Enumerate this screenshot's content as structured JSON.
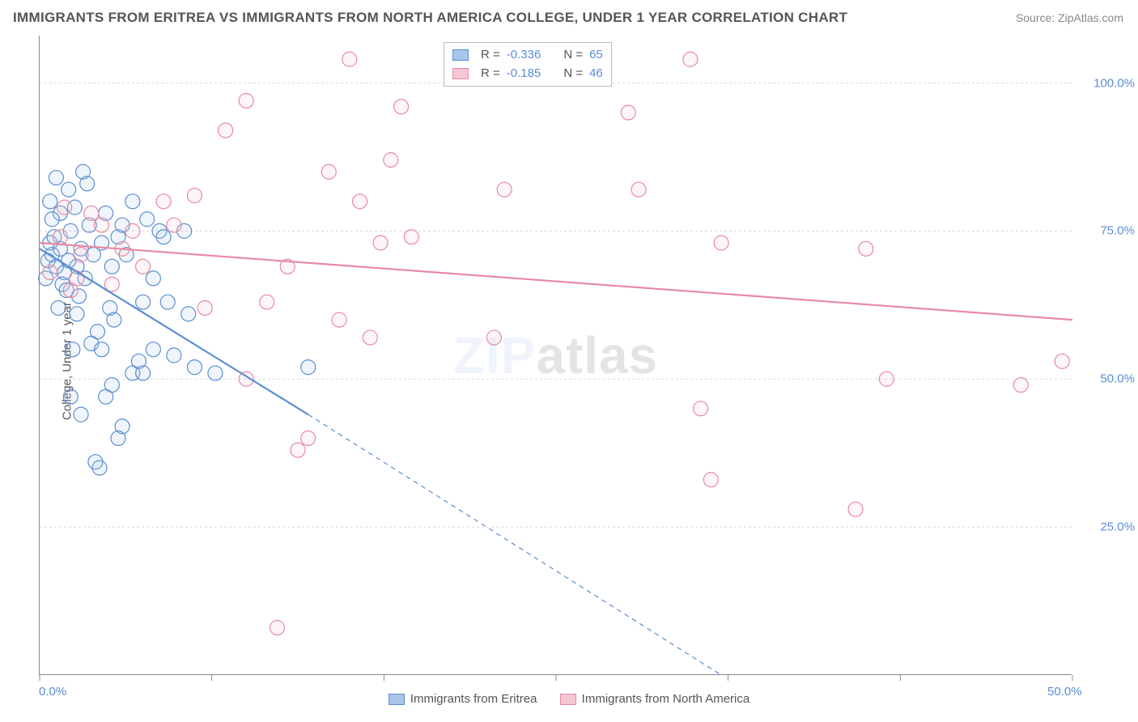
{
  "title": "IMMIGRANTS FROM ERITREA VS IMMIGRANTS FROM NORTH AMERICA COLLEGE, UNDER 1 YEAR CORRELATION CHART",
  "source": "Source: ZipAtlas.com",
  "y_axis_label": "College, Under 1 year",
  "watermark": {
    "zip": "ZIP",
    "atlas": "atlas"
  },
  "chart": {
    "type": "scatter",
    "background_color": "#ffffff",
    "grid_color": "#d8d8d8",
    "axis_color": "#888888",
    "tick_label_color": "#5a8dd6",
    "tick_fontsize": 15,
    "title_fontsize": 17,
    "label_fontsize": 15,
    "xlim": [
      0,
      50
    ],
    "ylim": [
      0,
      108
    ],
    "x_ticks": [
      0,
      8.33,
      16.67,
      25,
      33.33,
      41.67,
      50
    ],
    "x_tick_labels": {
      "0": "0.0%",
      "50": "50.0%"
    },
    "y_ticks": [
      25,
      50,
      75,
      100
    ],
    "y_tick_labels": {
      "25": "25.0%",
      "50": "50.0%",
      "75": "75.0%",
      "100": "100.0%"
    },
    "marker_radius": 9,
    "marker_stroke_width": 1.2,
    "marker_fill_opacity": 0.18,
    "line_width": 2.2,
    "series": [
      {
        "name": "Immigrants from Eritrea",
        "color_stroke": "#5b8ed1",
        "color_fill": "#a9c5e8",
        "R": "-0.336",
        "N": "65",
        "trend": {
          "x1": 0,
          "y1": 72,
          "x2_solid": 13,
          "y2_solid": 44,
          "x2_dash": 33,
          "y2_dash": 0
        },
        "points": [
          [
            0.4,
            70
          ],
          [
            0.6,
            71
          ],
          [
            0.5,
            73
          ],
          [
            0.8,
            69
          ],
          [
            1.0,
            72
          ],
          [
            1.2,
            68
          ],
          [
            0.3,
            67
          ],
          [
            0.7,
            74
          ],
          [
            1.4,
            70
          ],
          [
            1.1,
            66
          ],
          [
            1.5,
            75
          ],
          [
            1.8,
            69
          ],
          [
            2.0,
            72
          ],
          [
            2.2,
            67
          ],
          [
            2.4,
            76
          ],
          [
            0.9,
            62
          ],
          [
            1.3,
            65
          ],
          [
            2.6,
            71
          ],
          [
            3.0,
            73
          ],
          [
            3.2,
            78
          ],
          [
            3.5,
            69
          ],
          [
            3.8,
            74
          ],
          [
            4.0,
            76
          ],
          [
            4.2,
            71
          ],
          [
            4.5,
            80
          ],
          [
            2.8,
            58
          ],
          [
            3.4,
            62
          ],
          [
            2.5,
            56
          ],
          [
            1.6,
            55
          ],
          [
            2.1,
            85
          ],
          [
            0.5,
            80
          ],
          [
            1.0,
            78
          ],
          [
            1.7,
            79
          ],
          [
            2.3,
            83
          ],
          [
            0.8,
            84
          ],
          [
            1.4,
            82
          ],
          [
            1.9,
            64
          ],
          [
            3.0,
            55
          ],
          [
            3.6,
            60
          ],
          [
            4.8,
            53
          ],
          [
            5.0,
            63
          ],
          [
            5.5,
            67
          ],
          [
            5.2,
            77
          ],
          [
            5.8,
            75
          ],
          [
            6.0,
            74
          ],
          [
            3.2,
            47
          ],
          [
            3.5,
            49
          ],
          [
            2.7,
            36
          ],
          [
            2.9,
            35
          ],
          [
            2.0,
            44
          ],
          [
            1.5,
            47
          ],
          [
            4.5,
            51
          ],
          [
            5.0,
            51
          ],
          [
            7.0,
            75
          ],
          [
            7.2,
            61
          ],
          [
            7.5,
            52
          ],
          [
            8.5,
            51
          ],
          [
            13.0,
            52
          ],
          [
            6.5,
            54
          ],
          [
            4.0,
            42
          ],
          [
            3.8,
            40
          ],
          [
            5.5,
            55
          ],
          [
            6.2,
            63
          ],
          [
            1.8,
            61
          ],
          [
            0.6,
            77
          ]
        ]
      },
      {
        "name": "Immigrants from North America",
        "color_stroke": "#e88aa2",
        "color_fill": "#f6c6d2",
        "R": "-0.185",
        "N": "46",
        "trend": {
          "x1": 0,
          "y1": 73,
          "x2_solid": 50,
          "y2_solid": 60,
          "x2_dash": 50,
          "y2_dash": 60
        },
        "points": [
          [
            0.5,
            68
          ],
          [
            1.0,
            74
          ],
          [
            1.2,
            79
          ],
          [
            1.5,
            65
          ],
          [
            2.0,
            71
          ],
          [
            2.5,
            78
          ],
          [
            3.0,
            76
          ],
          [
            3.5,
            66
          ],
          [
            4.0,
            72
          ],
          [
            4.5,
            75
          ],
          [
            5.0,
            69
          ],
          [
            6.0,
            80
          ],
          [
            6.5,
            76
          ],
          [
            7.5,
            81
          ],
          [
            8.0,
            62
          ],
          [
            9.0,
            92
          ],
          [
            10.0,
            97
          ],
          [
            10.0,
            50
          ],
          [
            11.0,
            63
          ],
          [
            12.0,
            69
          ],
          [
            12.5,
            38
          ],
          [
            11.5,
            8
          ],
          [
            13.0,
            40
          ],
          [
            14.0,
            85
          ],
          [
            14.5,
            60
          ],
          [
            15.0,
            104
          ],
          [
            15.5,
            80
          ],
          [
            16.0,
            57
          ],
          [
            16.5,
            73
          ],
          [
            17.0,
            87
          ],
          [
            17.5,
            96
          ],
          [
            18.0,
            74
          ],
          [
            22.0,
            57
          ],
          [
            22.5,
            82
          ],
          [
            28.5,
            95
          ],
          [
            29.0,
            82
          ],
          [
            31.5,
            104
          ],
          [
            32.0,
            45
          ],
          [
            32.5,
            33
          ],
          [
            33.0,
            73
          ],
          [
            40.0,
            72
          ],
          [
            39.5,
            28
          ],
          [
            41.0,
            50
          ],
          [
            47.5,
            49
          ],
          [
            49.5,
            53
          ],
          [
            1.8,
            67
          ]
        ]
      }
    ]
  },
  "top_legend": {
    "r_label": "R =",
    "n_label": "N ="
  },
  "bottom_legend_labels": [
    "Immigrants from Eritrea",
    "Immigrants from North America"
  ]
}
